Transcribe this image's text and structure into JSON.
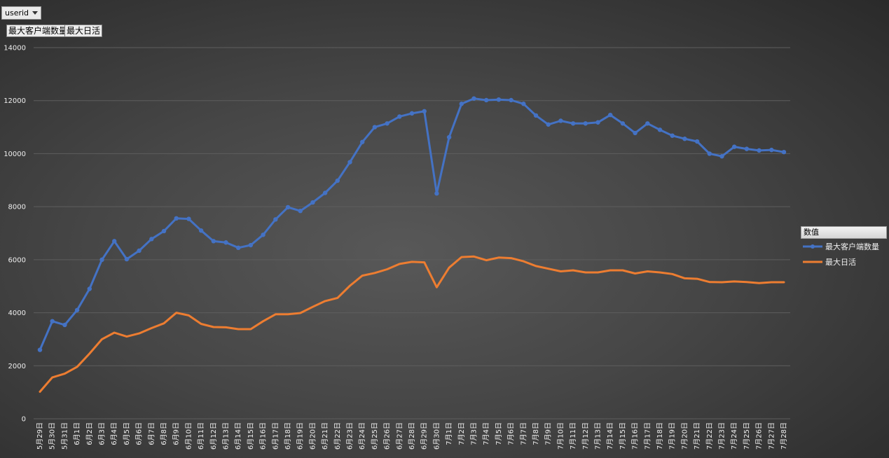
{
  "filter": {
    "label": "userid",
    "icon": "dropdown-arrow-icon"
  },
  "field_buttons": [
    "最大客户端数量",
    "最大日活"
  ],
  "legend": {
    "title": "数值",
    "placement": "right"
  },
  "colors": {
    "series_0": "#4472c4",
    "series_1": "#ed7d31",
    "grid": "#5e5e5e",
    "text": "#eeeeee"
  },
  "chart_data": {
    "type": "line",
    "x": [
      "5月29日",
      "5月30日",
      "5月31日",
      "6月1日",
      "6月2日",
      "6月3日",
      "6月4日",
      "6月5日",
      "6月6日",
      "6月7日",
      "6月8日",
      "6月9日",
      "6月10日",
      "6月11日",
      "6月12日",
      "6月13日",
      "6月14日",
      "6月15日",
      "6月16日",
      "6月17日",
      "6月18日",
      "6月19日",
      "6月20日",
      "6月21日",
      "6月22日",
      "6月23日",
      "6月24日",
      "6月25日",
      "6月26日",
      "6月27日",
      "6月28日",
      "6月29日",
      "6月30日",
      "7月1日",
      "7月2日",
      "7月3日",
      "7月4日",
      "7月5日",
      "7月6日",
      "7月7日",
      "7月8日",
      "7月9日",
      "7月10日",
      "7月11日",
      "7月12日",
      "7月13日",
      "7月14日",
      "7月15日",
      "7月16日",
      "7月17日",
      "7月18日",
      "7月19日",
      "7月20日",
      "7月21日",
      "7月22日",
      "7月23日",
      "7月24日",
      "7月25日",
      "7月26日",
      "7月27日",
      "7月28日"
    ],
    "series": [
      {
        "name": "最大客户端数量",
        "markers": true,
        "values": [
          2600,
          3680,
          3540,
          4100,
          4900,
          6000,
          6700,
          6020,
          6340,
          6780,
          7080,
          7560,
          7540,
          7100,
          6700,
          6650,
          6450,
          6550,
          6940,
          7520,
          7980,
          7840,
          8160,
          8520,
          8980,
          9680,
          10440,
          11000,
          11140,
          11400,
          11520,
          11600,
          8500,
          10620,
          11880,
          12080,
          12020,
          12040,
          12020,
          11880,
          11440,
          11100,
          11240,
          11140,
          11140,
          11180,
          11460,
          11140,
          10780,
          11140,
          10900,
          10680,
          10560,
          10460,
          10000,
          9900,
          10260,
          10180,
          10120,
          10140,
          10060
        ]
      },
      {
        "name": "最大日活",
        "markers": false,
        "values": [
          1020,
          1560,
          1700,
          1960,
          2460,
          3000,
          3250,
          3100,
          3220,
          3420,
          3600,
          4000,
          3900,
          3580,
          3460,
          3450,
          3380,
          3380,
          3680,
          3940,
          3940,
          3990,
          4220,
          4440,
          4560,
          5020,
          5400,
          5500,
          5640,
          5840,
          5920,
          5900,
          4960,
          5700,
          6100,
          6120,
          5980,
          6080,
          6060,
          5940,
          5760,
          5660,
          5560,
          5600,
          5520,
          5520,
          5600,
          5600,
          5480,
          5560,
          5520,
          5460,
          5300,
          5280,
          5160,
          5150,
          5180,
          5160,
          5120,
          5150,
          5150
        ]
      }
    ],
    "ylim": [
      0,
      14000
    ],
    "yticks": [
      0,
      2000,
      4000,
      6000,
      8000,
      10000,
      12000,
      14000
    ],
    "grid": true,
    "title": "",
    "xlabel": "",
    "ylabel": ""
  }
}
